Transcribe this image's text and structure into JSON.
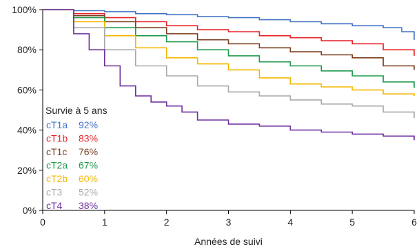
{
  "chart_data": {
    "type": "line",
    "title": "",
    "xlabel": "Années de suivi",
    "ylabel": "",
    "xlim": [
      0,
      6
    ],
    "ylim": [
      0,
      100
    ],
    "x_ticks": [
      "0",
      "1",
      "2",
      "3",
      "4",
      "5",
      "6"
    ],
    "y_ticks": [
      "0%",
      "20%",
      "40%",
      "60%",
      "80%",
      "100%"
    ],
    "grid": false,
    "legend_title": "Survie à 5 ans",
    "legend_placement": "left",
    "series": [
      {
        "name": "cT1a",
        "survival_5y": "92%",
        "color": "#4472c4",
        "x": [
          0,
          0.5,
          1,
          1.5,
          2,
          2.5,
          3,
          3.5,
          4,
          4.5,
          5,
          5.5,
          5.8,
          6
        ],
        "y": [
          100,
          99.5,
          99,
          98,
          97.5,
          96.5,
          96,
          95,
          94,
          93,
          92,
          91,
          89,
          85
        ]
      },
      {
        "name": "cT1b",
        "survival_5y": "83%",
        "color": "#e8232a",
        "x": [
          0,
          0.5,
          1,
          1.5,
          2,
          2.5,
          3,
          3.5,
          4,
          4.5,
          5,
          5.5,
          6
        ],
        "y": [
          100,
          98,
          96,
          94,
          92,
          90,
          89,
          87,
          86,
          84.5,
          83,
          80,
          77
        ]
      },
      {
        "name": "cT1c",
        "survival_5y": "76%",
        "color": "#7b3f1e",
        "x": [
          0,
          0.5,
          1,
          1.5,
          2,
          2.5,
          3,
          3.5,
          4,
          4.5,
          5,
          5.5,
          6
        ],
        "y": [
          100,
          97,
          94,
          91,
          88,
          85,
          83,
          81,
          79,
          77.5,
          76,
          72,
          70
        ]
      },
      {
        "name": "cT2a",
        "survival_5y": "67%",
        "color": "#1e9a4c",
        "x": [
          0,
          0.5,
          1,
          1.5,
          2,
          2.5,
          3,
          3.5,
          4,
          4.5,
          5,
          5.5,
          6
        ],
        "y": [
          100,
          96,
          91,
          87,
          84,
          80,
          77,
          74,
          72,
          69.5,
          67,
          64,
          61
        ]
      },
      {
        "name": "cT2b",
        "survival_5y": "60%",
        "color": "#f5b800",
        "x": [
          0,
          0.5,
          1,
          1.5,
          2,
          2.5,
          3,
          3.5,
          4,
          4.5,
          5,
          5.5,
          6
        ],
        "y": [
          100,
          94,
          87,
          81,
          76,
          73,
          70,
          66,
          63,
          61.5,
          60,
          58,
          57
        ]
      },
      {
        "name": "cT3",
        "survival_5y": "52%",
        "color": "#aaaaaa",
        "x": [
          0,
          0.5,
          1,
          1.5,
          2,
          2.5,
          3,
          3.5,
          4,
          4.5,
          5,
          5.5,
          6
        ],
        "y": [
          100,
          91,
          80,
          72,
          67,
          62,
          59,
          57,
          55,
          53,
          52,
          49,
          46
        ]
      },
      {
        "name": "cT4",
        "survival_5y": "38%",
        "color": "#7030a0",
        "x": [
          0,
          0.5,
          0.75,
          1,
          1.25,
          1.5,
          1.75,
          2,
          2.25,
          2.5,
          3,
          3.5,
          4,
          4.5,
          5,
          5.5,
          6
        ],
        "y": [
          100,
          88,
          80,
          72,
          62,
          57,
          54,
          52,
          49,
          45,
          43,
          42,
          40,
          39,
          38,
          37,
          35
        ]
      }
    ]
  }
}
